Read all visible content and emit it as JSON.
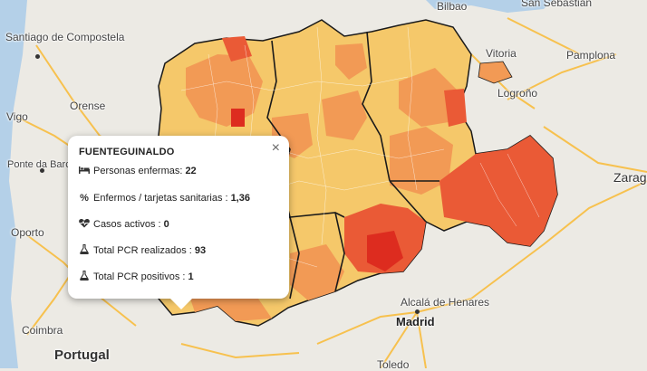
{
  "map": {
    "labels": {
      "santiago": "Santiago de Compostela",
      "vigo": "Vigo",
      "orense": "Orense",
      "ponte_barca": "Ponte da Barca",
      "oporto": "Oporto",
      "coimbra": "Coimbra",
      "portugal": "Portugal",
      "bilbao": "Bilbao",
      "san_sebastian": "San Sebastian",
      "vitoria": "Vitoria",
      "pamplona": "Pamplona",
      "logrono": "Logroño",
      "zaragoza": "Zarago",
      "alcala": "Alcalá de Henares",
      "madrid": "Madrid",
      "toledo": "Toledo"
    },
    "colors": {
      "background": "#eceae4",
      "low": "#f5c86a",
      "mid": "#f29a55",
      "high": "#ea5a36",
      "highest": "#dd2c1f",
      "border": "#1a1a1a",
      "road": "#f7c14e"
    }
  },
  "popup": {
    "title": "FUENTEGUINALDO",
    "close_label": "×",
    "rows": [
      {
        "icon": "bed-icon",
        "label": "Personas enfermas:",
        "value": "22"
      },
      {
        "icon": "percent-icon",
        "label": "Enfermos / tarjetas sanitarias :",
        "value": "1,36"
      },
      {
        "icon": "heartbeat-icon",
        "label": "Casos activos :",
        "value": "0"
      },
      {
        "icon": "flask-icon",
        "label": "Total PCR realizados :",
        "value": "93"
      },
      {
        "icon": "flask-icon",
        "label": "Total PCR positivos :",
        "value": "1"
      }
    ]
  }
}
